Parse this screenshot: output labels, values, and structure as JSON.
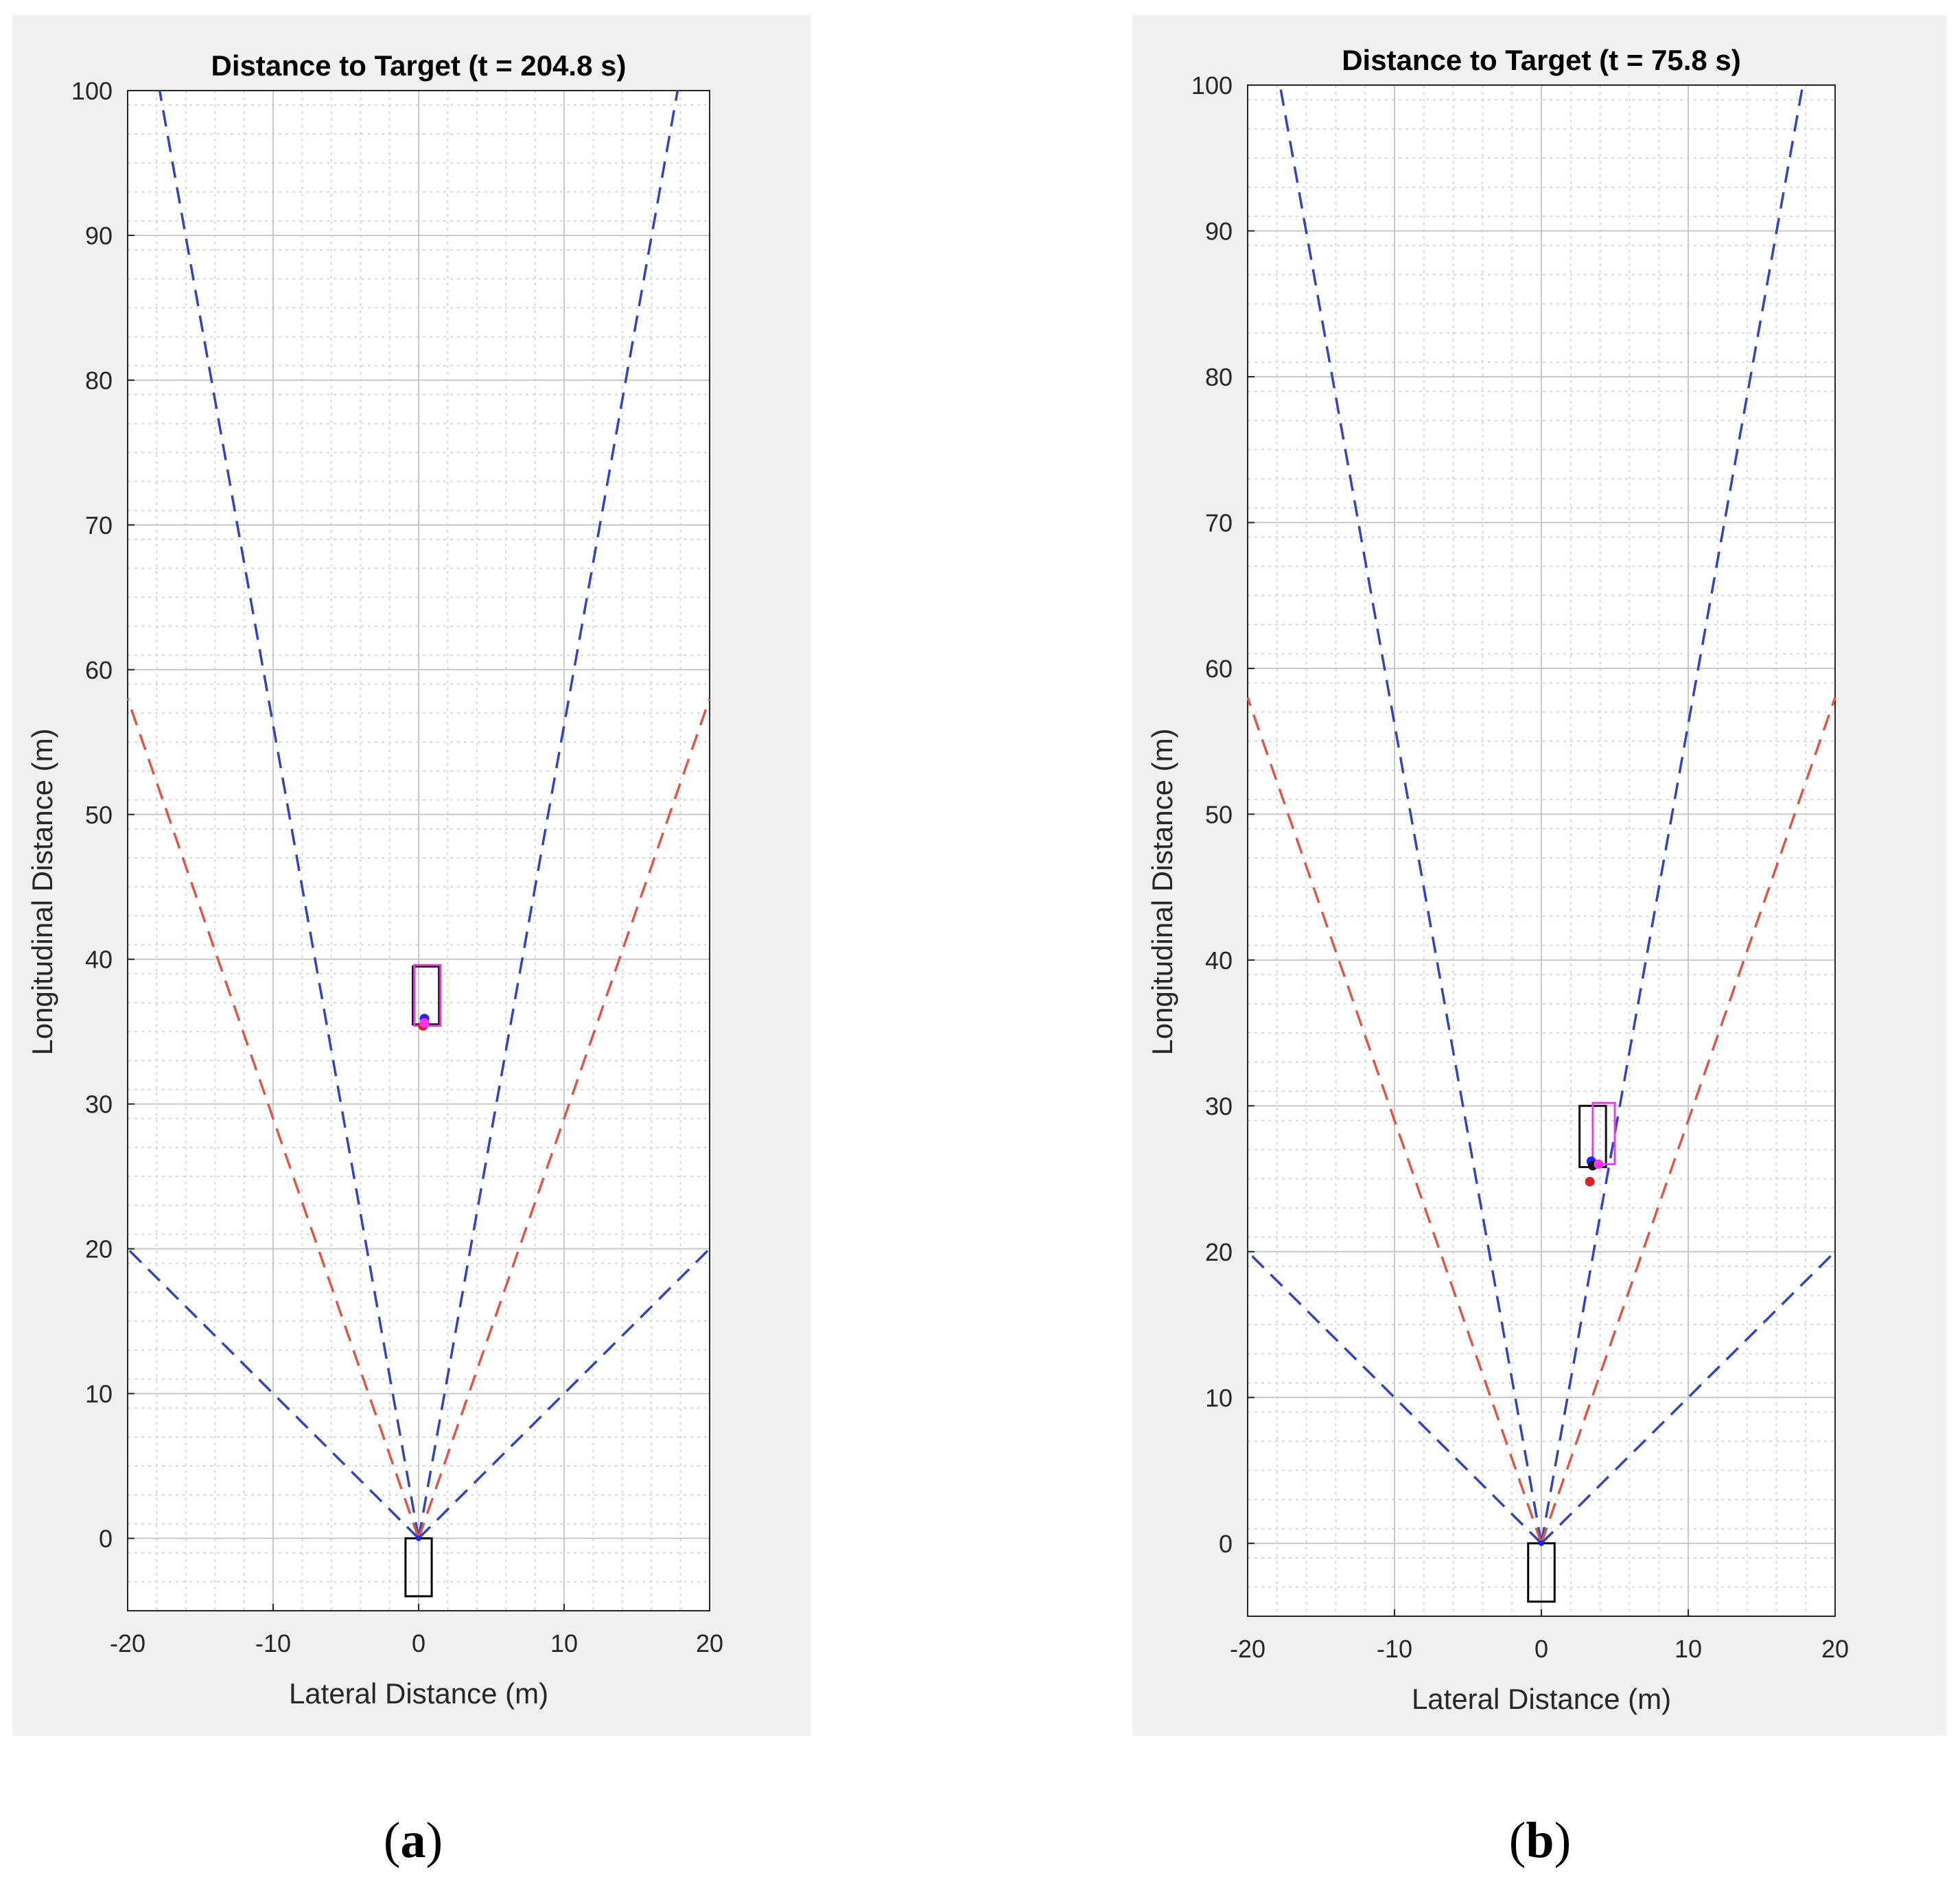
{
  "captions": {
    "a_open": "(",
    "a_letter": "a",
    "a_close": ")",
    "b_open": "(",
    "b_letter": "b",
    "b_close": ")"
  },
  "colors": {
    "blue_cone": "#3344bb",
    "red_cone": "#d9584a",
    "ego": "#000000",
    "detection_black": "#111111",
    "detection_magenta": "#e040e0",
    "point_blue": "#2222ff",
    "point_red": "#dd2222",
    "point_magenta": "#ff33ff"
  },
  "chart_data": [
    {
      "id": "a",
      "type": "scatter",
      "title": "Distance to Target (t = 204.8 s)",
      "xlabel": "Lateral Distance (m)",
      "ylabel": "Longitudinal Distance (m)",
      "xlim": [
        -20,
        20
      ],
      "ylim": [
        -5,
        100
      ],
      "xticks": [
        -20,
        -10,
        0,
        10,
        20
      ],
      "yticks": [
        0,
        10,
        20,
        30,
        40,
        50,
        60,
        70,
        80,
        90,
        100
      ],
      "grid": true,
      "minor_grid": true,
      "coverage_lines": [
        {
          "name": "long-range-left",
          "color": "blue",
          "x": [
            0,
            -17.8
          ],
          "y": [
            0,
            100
          ]
        },
        {
          "name": "long-range-right",
          "color": "blue",
          "x": [
            0,
            17.8
          ],
          "y": [
            0,
            100
          ]
        },
        {
          "name": "mid-range-left",
          "color": "red",
          "x": [
            0,
            -20
          ],
          "y": [
            0,
            58
          ]
        },
        {
          "name": "mid-range-right",
          "color": "red",
          "x": [
            0,
            20
          ],
          "y": [
            0,
            58
          ]
        },
        {
          "name": "wide-left",
          "color": "blue",
          "x": [
            0,
            -20
          ],
          "y": [
            0,
            20
          ]
        },
        {
          "name": "wide-right",
          "color": "blue",
          "x": [
            0,
            20
          ],
          "y": [
            0,
            20
          ]
        }
      ],
      "ego_vehicle": {
        "x_min": -0.9,
        "x_max": 0.9,
        "y_min": -4,
        "y_max": 0
      },
      "boxes": [
        {
          "name": "target-box-black",
          "color": "black",
          "x_min": -0.4,
          "x_max": 1.4,
          "y_min": 35.5,
          "y_max": 39.5
        },
        {
          "name": "target-box-magenta",
          "color": "magenta",
          "x_min": -0.3,
          "x_max": 1.5,
          "y_min": 35.4,
          "y_max": 39.6
        }
      ],
      "points": [
        {
          "name": "target-point-red",
          "color": "red",
          "x": 0.3,
          "y": 35.4
        },
        {
          "name": "target-point-blue",
          "color": "blue",
          "x": 0.4,
          "y": 35.9
        },
        {
          "name": "target-point-magenta",
          "color": "magenta",
          "x": 0.4,
          "y": 35.6
        }
      ]
    },
    {
      "id": "b",
      "type": "scatter",
      "title": "Distance to Target (t = 75.8 s)",
      "xlabel": "Lateral Distance (m)",
      "ylabel": "Longitudinal Distance (m)",
      "xlim": [
        -20,
        20
      ],
      "ylim": [
        -5,
        100
      ],
      "xticks": [
        -20,
        -10,
        0,
        10,
        20
      ],
      "yticks": [
        0,
        10,
        20,
        30,
        40,
        50,
        60,
        70,
        80,
        90,
        100
      ],
      "grid": true,
      "minor_grid": true,
      "coverage_lines": [
        {
          "name": "long-range-left",
          "color": "blue",
          "x": [
            0,
            -17.8
          ],
          "y": [
            0,
            100
          ]
        },
        {
          "name": "long-range-right",
          "color": "blue",
          "x": [
            0,
            17.8
          ],
          "y": [
            0,
            100
          ]
        },
        {
          "name": "mid-range-left",
          "color": "red",
          "x": [
            0,
            -20
          ],
          "y": [
            0,
            58
          ]
        },
        {
          "name": "mid-range-right",
          "color": "red",
          "x": [
            0,
            20
          ],
          "y": [
            0,
            58
          ]
        },
        {
          "name": "wide-left",
          "color": "blue",
          "x": [
            0,
            -20
          ],
          "y": [
            0,
            20
          ]
        },
        {
          "name": "wide-right",
          "color": "blue",
          "x": [
            0,
            20
          ],
          "y": [
            0,
            20
          ]
        }
      ],
      "ego_vehicle": {
        "x_min": -0.9,
        "x_max": 0.9,
        "y_min": -4,
        "y_max": 0
      },
      "boxes": [
        {
          "name": "target-box-black",
          "color": "black",
          "x_min": 2.6,
          "x_max": 4.4,
          "y_min": 25.8,
          "y_max": 30.0
        },
        {
          "name": "target-box-magenta",
          "color": "magenta",
          "x_min": 3.5,
          "x_max": 5.0,
          "y_min": 26.0,
          "y_max": 30.2
        }
      ],
      "points": [
        {
          "name": "target-point-red",
          "color": "red",
          "x": 3.3,
          "y": 24.8
        },
        {
          "name": "target-point-blue",
          "color": "blue",
          "x": 3.4,
          "y": 26.2
        },
        {
          "name": "target-point-black",
          "color": "black",
          "x": 3.5,
          "y": 25.9
        },
        {
          "name": "target-point-magenta",
          "color": "magenta",
          "x": 3.9,
          "y": 26.0
        }
      ]
    }
  ]
}
